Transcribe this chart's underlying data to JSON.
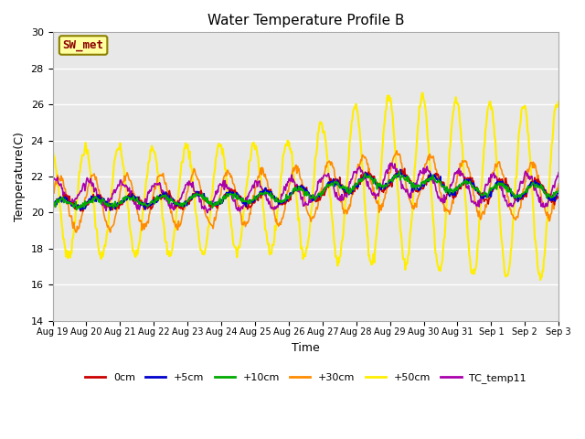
{
  "title": "Water Temperature Profile B",
  "xlabel": "Time",
  "ylabel": "Temperature(C)",
  "ylim": [
    14,
    30
  ],
  "yticks": [
    14,
    16,
    18,
    20,
    22,
    24,
    26,
    28,
    30
  ],
  "annotation_text": "SW_met",
  "annotation_color": "#8B0000",
  "annotation_bg": "#FFFFA0",
  "annotation_border": "#8B8000",
  "bg_color": "#E8E8E8",
  "series_order": [
    "0cm",
    "+5cm",
    "+10cm",
    "+30cm",
    "+50cm",
    "TC_temp11"
  ],
  "series": {
    "0cm": {
      "color": "#CC0000",
      "lw": 1.2
    },
    "+5cm": {
      "color": "#0000CC",
      "lw": 1.2
    },
    "+10cm": {
      "color": "#00AA00",
      "lw": 1.2
    },
    "+30cm": {
      "color": "#FF8C00",
      "lw": 1.2
    },
    "+50cm": {
      "color": "#FFEE00",
      "lw": 1.5
    },
    "TC_temp11": {
      "color": "#AA00AA",
      "lw": 1.2
    }
  },
  "x_tick_labels": [
    "Aug 19",
    "Aug 20",
    "Aug 21",
    "Aug 22",
    "Aug 23",
    "Aug 24",
    "Aug 25",
    "Aug 26",
    "Aug 27",
    "Aug 28",
    "Aug 29",
    "Aug 30",
    "Aug 31",
    "Sep 1",
    "Sep 2",
    "Sep 3"
  ],
  "n_days": 15,
  "pts_per_day": 48
}
